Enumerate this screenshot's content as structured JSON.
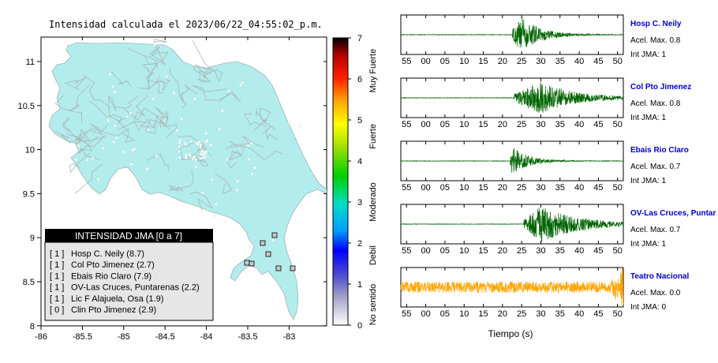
{
  "map": {
    "title": "Intensidad calculada el 2023/06/22_04:55:02_p.m.",
    "x_ticks": [
      "-86",
      "-85.5",
      "-85",
      "-84.5",
      "-84",
      "-83.5",
      "-83"
    ],
    "y_ticks": [
      "11",
      "10.5",
      "10",
      "9.5",
      "9",
      "8.5",
      "8"
    ],
    "land_color": "#b3ecec",
    "legend": {
      "title": "INTENSIDAD JMA [0 a 7]",
      "rows": [
        {
          "level": "[ 1 ]",
          "station": "Hosp C. Neily (8.7)"
        },
        {
          "level": "[ 1 ]",
          "station": "Col Pto Jimenez (2.7)"
        },
        {
          "level": "[ 1 ]",
          "station": "Ebais Rio Claro (7.9)"
        },
        {
          "level": "[ 1 ]",
          "station": "OV-Las Cruces, Puntarenas (2.2)"
        },
        {
          "level": "[ 1 ]",
          "station": "Lic F Alajuela, Osa (1.9)"
        },
        {
          "level": "[ 0 ]",
          "station": "Clin Pto Jimenez (2.9)"
        }
      ]
    }
  },
  "colorbar": {
    "ticks": [
      "0",
      "1",
      "2",
      "3",
      "4",
      "5",
      "6",
      "7"
    ],
    "bands": [
      "No sentido",
      "Debil",
      "Moderado",
      "Fuerte",
      "Muy Fuerte"
    ]
  },
  "chart_data": {
    "type": "line",
    "xlabel": "Tiempo (s)",
    "x_ticks": [
      "55",
      "00",
      "05",
      "10",
      "15",
      "20",
      "25",
      "30",
      "35",
      "40",
      "45",
      "50"
    ],
    "series": [
      {
        "name": "Hosp C. Neily",
        "accel": "Acel. Max. 0.8",
        "intensity": "Int JMA: 1",
        "color": "#006400",
        "onset_s": 27.5,
        "peak_s": 30,
        "amp": 0.95,
        "decay_s": 5,
        "noise": 0.015
      },
      {
        "name": "Col Pto Jimenez",
        "accel": "Acel. Max. 0.8",
        "intensity": "Int JMA: 1",
        "color": "#006400",
        "onset_s": 28,
        "peak_s": 35,
        "amp": 0.85,
        "decay_s": 9,
        "noise": 0.015
      },
      {
        "name": "Ebais Rio Claro",
        "accel": "Acel. Max. 0.7",
        "intensity": "Int JMA: 1",
        "color": "#006400",
        "onset_s": 27,
        "peak_s": 27.5,
        "amp": 0.8,
        "decay_s": 4,
        "noise": 0.015
      },
      {
        "name": "OV-Las Cruces, Puntar",
        "accel": "Acel. Max. 0.7",
        "intensity": "Int JMA: 1",
        "color": "#006400",
        "onset_s": 30.5,
        "peak_s": 35,
        "amp": 0.95,
        "decay_s": 10,
        "noise": 0.015
      },
      {
        "name": "Teatro Nacional",
        "accel": "Acel. Max. 0.0",
        "intensity": "Int JMA: 0",
        "color": "#ffa500",
        "onset_s": 0,
        "peak_s": 0,
        "amp": 0,
        "decay_s": 1,
        "noise": 0.3
      }
    ]
  }
}
